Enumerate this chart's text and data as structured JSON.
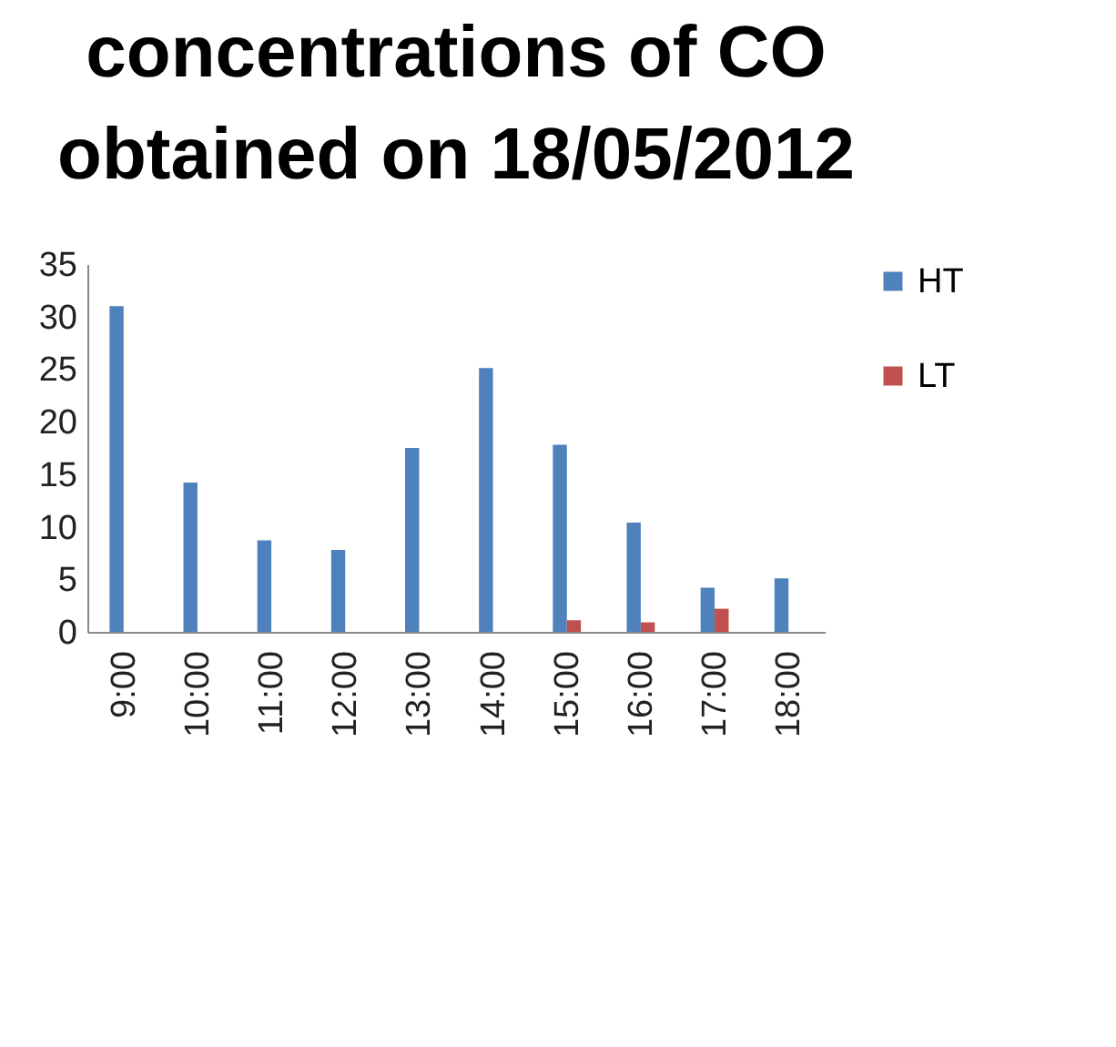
{
  "chart_data": {
    "type": "bar",
    "title": "concentrations of CO obtained on 18/05/2012",
    "categories": [
      "9:00",
      "10:00",
      "11:00",
      "12:00",
      "13:00",
      "14:00",
      "15:00",
      "16:00",
      "17:00",
      "18:00"
    ],
    "series": [
      {
        "name": "HT",
        "color": "#4f81bd",
        "values": [
          31,
          14.2,
          8.7,
          7.8,
          17.5,
          25.1,
          17.8,
          10.4,
          4.2,
          5.1
        ]
      },
      {
        "name": "LT",
        "color": "#c0504d",
        "values": [
          null,
          null,
          null,
          null,
          null,
          null,
          1.1,
          0.9,
          2.2,
          null
        ]
      }
    ],
    "ylim": [
      0,
      35
    ],
    "yticks": [
      0,
      5,
      10,
      15,
      20,
      25,
      30,
      35
    ],
    "grid": false,
    "legend": "right"
  }
}
